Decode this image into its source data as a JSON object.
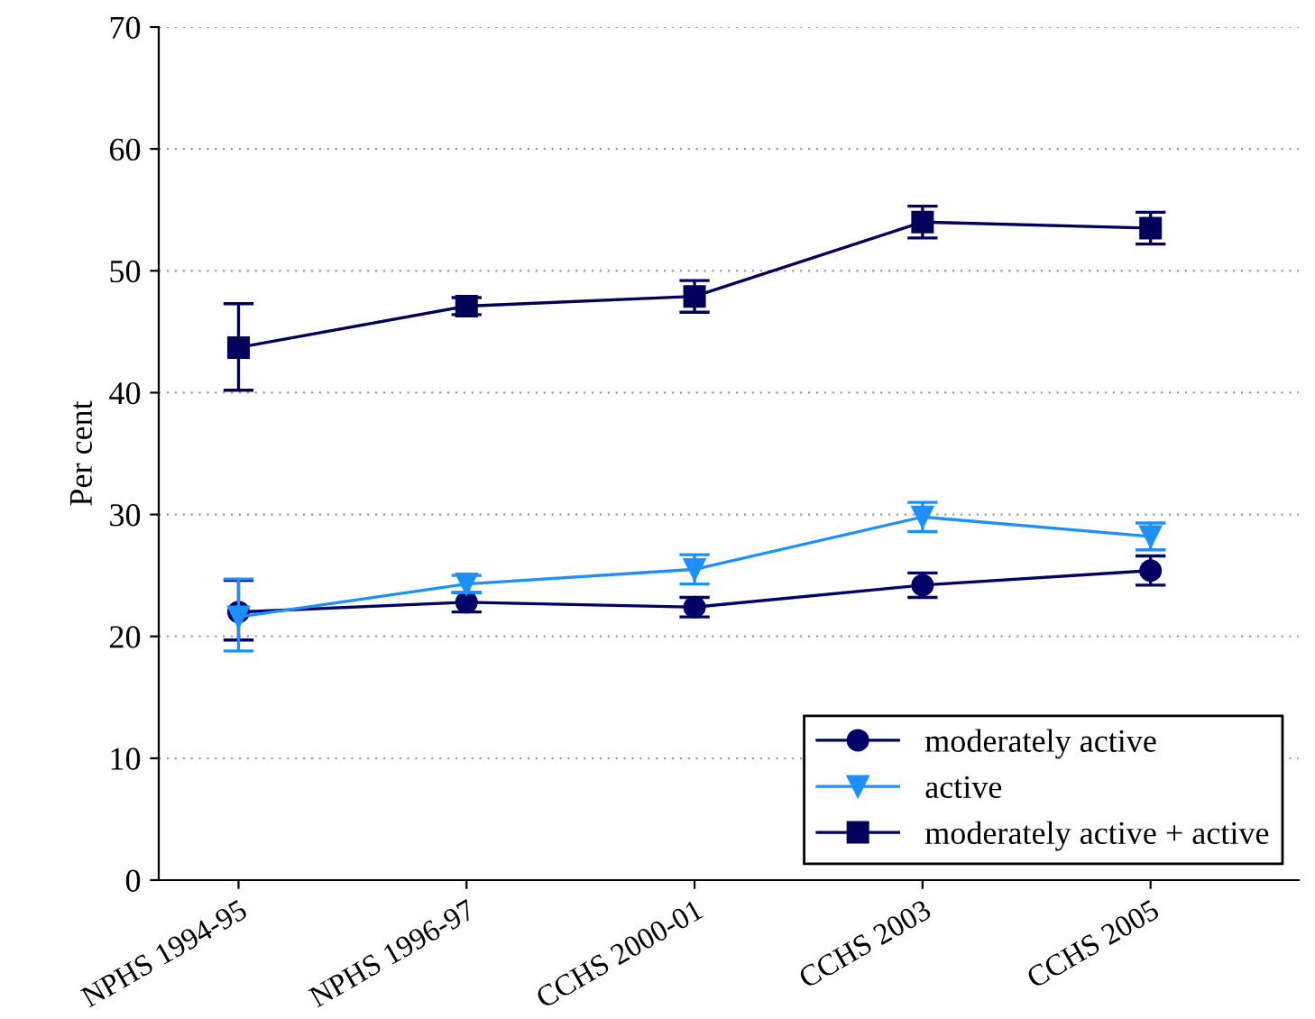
{
  "chart_data": {
    "type": "line",
    "ylabel": "Per cent",
    "categories": [
      "NPHS 1994-95",
      "NPHS 1996-97",
      "CCHS 2000-01",
      "CCHS 2003",
      "CCHS 2005"
    ],
    "ylim": [
      0,
      70
    ],
    "yticks": [
      0,
      10,
      20,
      30,
      40,
      50,
      60,
      70
    ],
    "grid": "y",
    "legend": "bottom right",
    "series": [
      {
        "name": "moderately active",
        "color": "#000066",
        "marker": "circle",
        "values": [
          22.0,
          22.8,
          22.4,
          24.2,
          25.4
        ],
        "errors": [
          [
            19.7,
            24.6
          ],
          0.8,
          0.8,
          1.0,
          1.2
        ]
      },
      {
        "name": "active",
        "color": "#1e8fff",
        "marker": "triangle",
        "values": [
          21.6,
          24.3,
          25.5,
          29.8,
          28.2
        ],
        "errors": [
          [
            18.8,
            24.7
          ],
          0.7,
          1.2,
          1.2,
          1.1
        ]
      },
      {
        "name": "moderately active + active",
        "color": "#00005a",
        "marker": "square",
        "values": [
          43.7,
          47.1,
          47.9,
          54.0,
          53.5
        ],
        "errors": [
          [
            40.2,
            47.3
          ],
          0.7,
          1.3,
          1.3,
          1.3
        ]
      }
    ]
  }
}
